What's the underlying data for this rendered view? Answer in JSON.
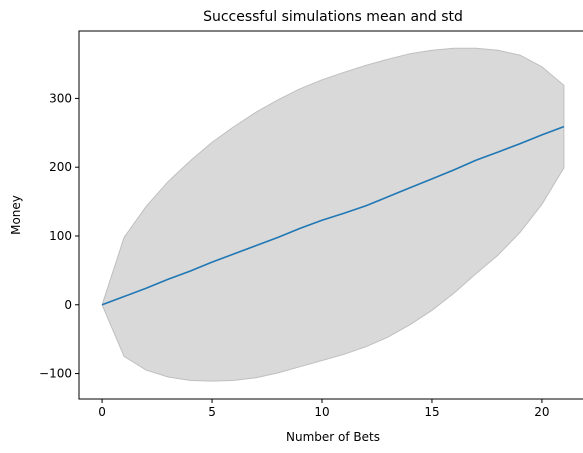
{
  "chart_data": {
    "type": "line",
    "title": "Successful simulations mean and std",
    "xlabel": "Number of Bets",
    "ylabel": "Money",
    "xlim": [
      -1.05,
      22.05
    ],
    "ylim": [
      -137,
      398
    ],
    "x_ticks": [
      0,
      5,
      10,
      15,
      20
    ],
    "y_ticks": [
      -100,
      0,
      100,
      200,
      300
    ],
    "grid": false,
    "legend": "none",
    "colors": {
      "mean_line": "#1f77b4",
      "std_band": "#bfbfbf"
    },
    "x": [
      0,
      1,
      2,
      3,
      4,
      5,
      6,
      7,
      8,
      9,
      10,
      11,
      12,
      13,
      14,
      15,
      16,
      17,
      18,
      19,
      20,
      21
    ],
    "series": [
      {
        "kind": "line",
        "values": [
          0,
          12,
          24,
          37,
          49,
          62,
          74,
          86,
          98,
          111,
          123,
          133,
          144,
          157,
          170,
          183,
          196,
          210,
          222,
          234,
          247,
          259
        ]
      },
      {
        "kind": "band",
        "upper": [
          0,
          98,
          143,
          179,
          209,
          236,
          259,
          280,
          298,
          314,
          327,
          338,
          348,
          357,
          365,
          370,
          373,
          373,
          370,
          363,
          346,
          319
        ],
        "lower": [
          0,
          -75,
          -95,
          -105,
          -110,
          -111,
          -110,
          -106,
          -99,
          -90,
          -81,
          -72,
          -61,
          -47,
          -29,
          -8,
          17,
          45,
          72,
          105,
          146,
          199
        ]
      }
    ]
  }
}
